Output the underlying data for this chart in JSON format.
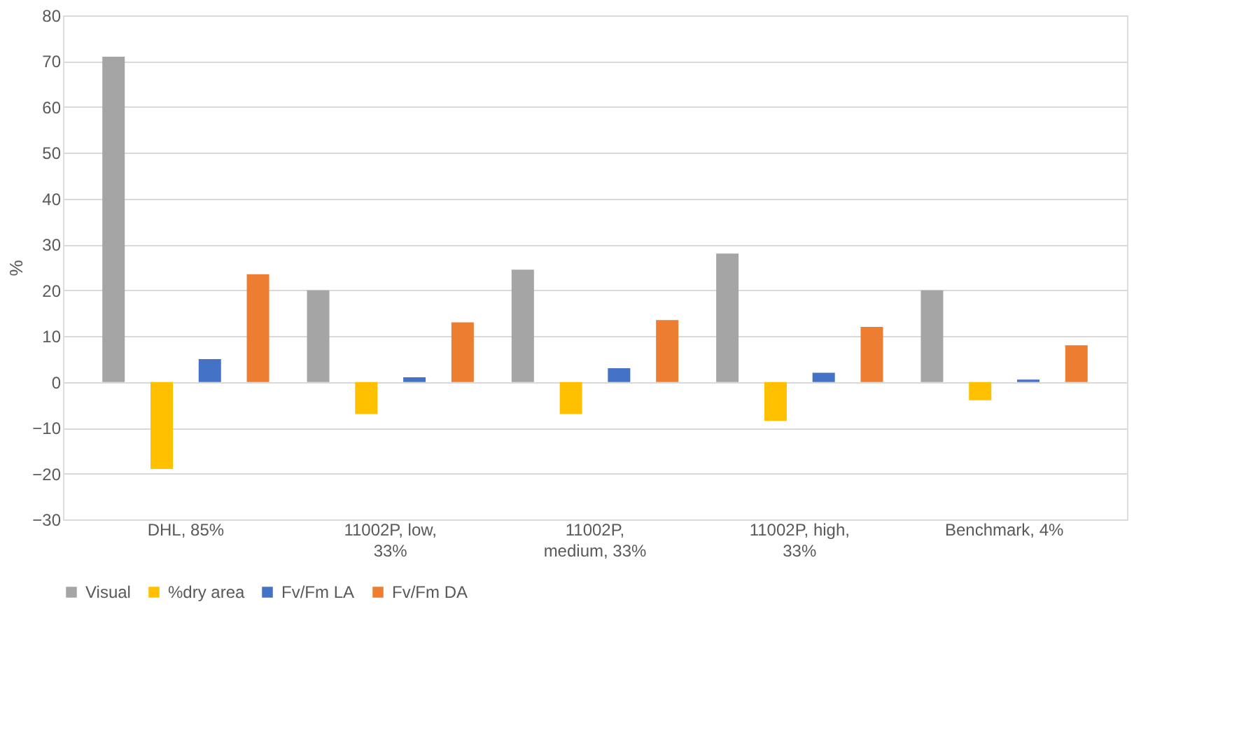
{
  "chart_data": {
    "type": "bar",
    "ylabel": "%",
    "categories": [
      "DHL, 85%",
      "11002P, low, 33%",
      "11002P, medium, 33%",
      "11002P, high, 33%",
      "Benchmark, 4%"
    ],
    "series": [
      {
        "name": "Visual",
        "color": "#a5a5a5",
        "values": [
          71,
          20,
          24.5,
          28,
          20
        ]
      },
      {
        "name": "%dry area",
        "color": "#ffc000",
        "values": [
          -19,
          -7,
          -7,
          -8.5,
          -4
        ]
      },
      {
        "name": "Fv/Fm LA",
        "color": "#4472c4",
        "values": [
          5,
          1,
          3,
          2,
          0.5
        ]
      },
      {
        "name": "Fv/Fm DA",
        "color": "#ed7d31",
        "values": [
          23.5,
          13,
          13.5,
          12,
          8
        ]
      }
    ],
    "ylim": [
      -30,
      80
    ],
    "yticks": [
      -30,
      -20,
      -10,
      0,
      10,
      20,
      30,
      40,
      50,
      60,
      70,
      80
    ],
    "grid": "y",
    "legend": "bottom"
  }
}
